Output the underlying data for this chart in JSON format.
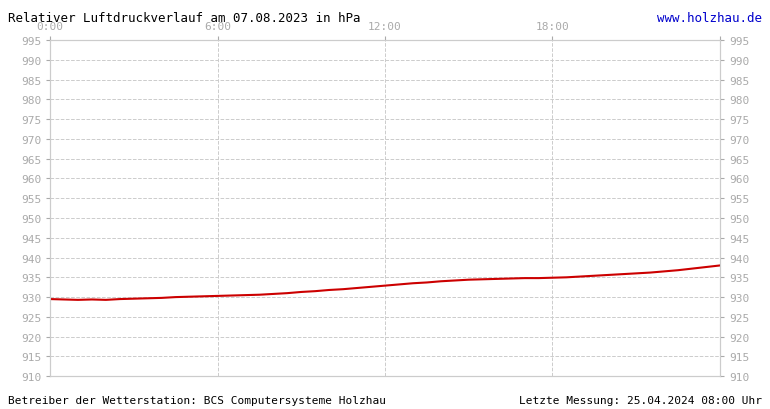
{
  "title": "Relativer Luftdruckverlauf am 07.08.2023 in hPa",
  "url_text": "www.holzhau.de",
  "footer_left": "Betreiber der Wetterstation: BCS Computersysteme Holzhau",
  "footer_right": "Letzte Messung: 25.04.2024 08:00 Uhr",
  "ymin": 910,
  "ymax": 995,
  "ytick_step": 5,
  "xmin": 0,
  "xmax": 1440,
  "xticks": [
    0,
    360,
    720,
    1080,
    1440
  ],
  "xtick_labels": [
    "0:00",
    "6:00",
    "12:00",
    "18:00",
    ""
  ],
  "background_color": "#ffffff",
  "plot_bg_color": "#ffffff",
  "grid_color": "#cccccc",
  "line_color": "#cc0000",
  "line_width": 1.5,
  "pressure_data_x": [
    0,
    30,
    60,
    90,
    120,
    150,
    180,
    210,
    240,
    270,
    300,
    330,
    360,
    390,
    420,
    450,
    480,
    510,
    540,
    570,
    600,
    630,
    660,
    690,
    720,
    750,
    780,
    810,
    840,
    870,
    900,
    930,
    960,
    990,
    1020,
    1050,
    1080,
    1110,
    1140,
    1170,
    1200,
    1230,
    1260,
    1290,
    1320,
    1350,
    1380,
    1410,
    1440
  ],
  "pressure_data_y": [
    929.5,
    929.4,
    929.3,
    929.4,
    929.3,
    929.5,
    929.6,
    929.7,
    929.8,
    930.0,
    930.1,
    930.2,
    930.3,
    930.4,
    930.5,
    930.6,
    930.8,
    931.0,
    931.3,
    931.5,
    931.8,
    932.0,
    932.3,
    932.6,
    932.9,
    933.2,
    933.5,
    933.7,
    934.0,
    934.2,
    934.4,
    934.5,
    934.6,
    934.7,
    934.8,
    934.8,
    934.9,
    935.0,
    935.2,
    935.4,
    935.6,
    935.8,
    936.0,
    936.2,
    936.5,
    936.8,
    937.2,
    937.6,
    938.0
  ]
}
